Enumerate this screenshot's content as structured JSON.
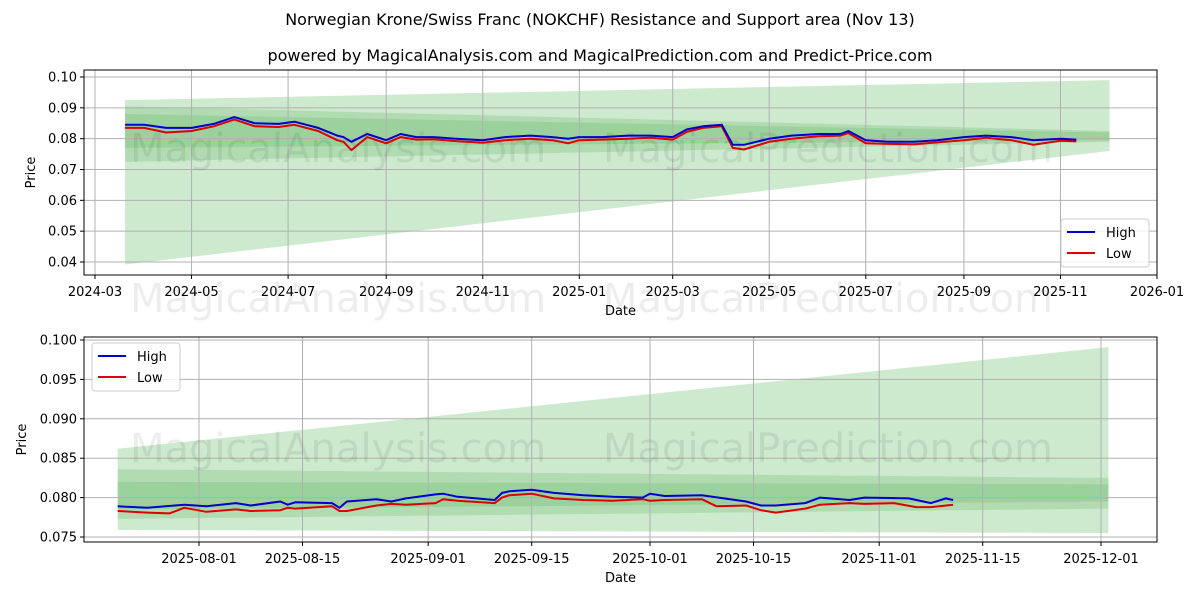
{
  "title": "Norwegian Krone/Swiss Franc (NOKCHF) Resistance and Support area (Nov 13)",
  "subtitle": "powered by MagicalAnalysis.com and MagicalPrediction.com and Predict-Price.com",
  "watermarks": [
    "MagicalAnalysis.com",
    "MagicalPrediction.com"
  ],
  "colors": {
    "high": "#0000cc",
    "low": "#dd0000",
    "band": "#4caf50",
    "grid": "#b0b0b0"
  },
  "chart_data": [
    {
      "type": "line",
      "title": "",
      "xlabel": "Date",
      "ylabel": "Price",
      "ylim": [
        0.036,
        0.102
      ],
      "yticks": [
        "0.04",
        "0.05",
        "0.06",
        "0.07",
        "0.08",
        "0.09",
        "0.10"
      ],
      "xticks": [
        "2024-03",
        "2024-05",
        "2024-07",
        "2024-09",
        "2024-11",
        "2025-01",
        "2025-03",
        "2025-05",
        "2025-07",
        "2025-09",
        "2025-11",
        "2026-01"
      ],
      "grid": true,
      "legend": {
        "position": "lower right",
        "entries": [
          "High",
          "Low"
        ]
      },
      "series": [
        {
          "name": "High",
          "x": [
            "2024-03-20",
            "2024-04-01",
            "2024-04-15",
            "2024-05-01",
            "2024-05-15",
            "2024-05-28",
            "2024-06-10",
            "2024-06-25",
            "2024-07-05",
            "2024-07-20",
            "2024-08-01",
            "2024-08-05",
            "2024-08-10",
            "2024-08-20",
            "2024-09-01",
            "2024-09-10",
            "2024-09-20",
            "2024-10-01",
            "2024-10-15",
            "2024-11-01",
            "2024-11-15",
            "2024-12-01",
            "2024-12-15",
            "2024-12-25",
            "2025-01-01",
            "2025-01-15",
            "2025-02-01",
            "2025-02-15",
            "2025-03-01",
            "2025-03-10",
            "2025-03-20",
            "2025-04-01",
            "2025-04-08",
            "2025-04-15",
            "2025-05-01",
            "2025-05-15",
            "2025-06-01",
            "2025-06-15",
            "2025-06-20",
            "2025-07-01",
            "2025-07-15",
            "2025-08-01",
            "2025-08-15",
            "2025-09-01",
            "2025-09-15",
            "2025-10-01",
            "2025-10-15",
            "2025-11-01",
            "2025-11-11"
          ],
          "values": [
            0.0845,
            0.0845,
            0.0835,
            0.0835,
            0.0848,
            0.087,
            0.085,
            0.0848,
            0.0855,
            0.0835,
            0.081,
            0.0805,
            0.079,
            0.0815,
            0.0795,
            0.0815,
            0.0805,
            0.0805,
            0.08,
            0.0795,
            0.0805,
            0.081,
            0.0805,
            0.08,
            0.0805,
            0.0805,
            0.081,
            0.081,
            0.0805,
            0.083,
            0.084,
            0.0845,
            0.078,
            0.078,
            0.08,
            0.081,
            0.0815,
            0.0815,
            0.0825,
            0.0795,
            0.079,
            0.079,
            0.0795,
            0.0805,
            0.081,
            0.0805,
            0.0795,
            0.08,
            0.0797
          ]
        },
        {
          "name": "Low",
          "x": [
            "2024-03-20",
            "2024-04-01",
            "2024-04-15",
            "2024-05-01",
            "2024-05-15",
            "2024-05-28",
            "2024-06-10",
            "2024-06-25",
            "2024-07-05",
            "2024-07-20",
            "2024-08-01",
            "2024-08-05",
            "2024-08-10",
            "2024-08-20",
            "2024-09-01",
            "2024-09-10",
            "2024-09-20",
            "2024-10-01",
            "2024-10-15",
            "2024-11-01",
            "2024-11-15",
            "2024-12-01",
            "2024-12-15",
            "2024-12-25",
            "2025-01-01",
            "2025-01-15",
            "2025-02-01",
            "2025-02-15",
            "2025-03-01",
            "2025-03-10",
            "2025-03-20",
            "2025-04-01",
            "2025-04-08",
            "2025-04-15",
            "2025-05-01",
            "2025-05-15",
            "2025-06-01",
            "2025-06-15",
            "2025-06-20",
            "2025-07-01",
            "2025-07-15",
            "2025-08-01",
            "2025-08-15",
            "2025-09-01",
            "2025-09-15",
            "2025-10-01",
            "2025-10-15",
            "2025-11-01",
            "2025-11-11"
          ],
          "values": [
            0.0835,
            0.0835,
            0.082,
            0.0825,
            0.084,
            0.0862,
            0.084,
            0.0838,
            0.0845,
            0.0825,
            0.0795,
            0.079,
            0.0763,
            0.0805,
            0.0785,
            0.0805,
            0.0797,
            0.0798,
            0.0792,
            0.0787,
            0.0795,
            0.08,
            0.0795,
            0.0785,
            0.0795,
            0.0797,
            0.08,
            0.0803,
            0.0797,
            0.0822,
            0.0835,
            0.084,
            0.077,
            0.0765,
            0.079,
            0.08,
            0.0808,
            0.081,
            0.0818,
            0.0785,
            0.0783,
            0.0782,
            0.0788,
            0.0795,
            0.0803,
            0.0795,
            0.078,
            0.0793,
            0.0791
          ]
        }
      ],
      "bands": [
        {
          "name": "outer-support-resistance",
          "x0": "2024-03-20",
          "x1": "2025-12-02",
          "top0": 0.0925,
          "top1": 0.099,
          "bottom0": 0.0392,
          "bottom1": 0.076,
          "pivot": "2025-06-20"
        },
        {
          "name": "mid-band",
          "x0": "2024-03-20",
          "x1": "2025-12-02",
          "top0": 0.0905,
          "top1": 0.0825,
          "bottom0": 0.0725,
          "bottom1": 0.079
        },
        {
          "name": "inner-band",
          "x0": "2024-03-20",
          "x1": "2025-12-02",
          "top0": 0.088,
          "top1": 0.082,
          "bottom0": 0.077,
          "bottom1": 0.0795
        }
      ]
    },
    {
      "type": "line",
      "title": "",
      "xlabel": "Date",
      "ylabel": "Price",
      "ylim": [
        0.0745,
        0.1004
      ],
      "yticks": [
        "0.075",
        "0.080",
        "0.085",
        "0.090",
        "0.095",
        "0.100"
      ],
      "xticks": [
        "2025-08-01",
        "2025-08-15",
        "2025-09-01",
        "2025-09-15",
        "2025-10-01",
        "2025-10-15",
        "2025-11-01",
        "2025-11-15",
        "2025-12-01"
      ],
      "grid": true,
      "legend": {
        "position": "upper left",
        "entries": [
          "High",
          "Low"
        ]
      },
      "series": [
        {
          "name": "High",
          "x": [
            "2025-07-21",
            "2025-07-25",
            "2025-07-30",
            "2025-08-02",
            "2025-08-06",
            "2025-08-08",
            "2025-08-12",
            "2025-08-13",
            "2025-08-14",
            "2025-08-19",
            "2025-08-20",
            "2025-08-21",
            "2025-08-25",
            "2025-08-27",
            "2025-08-29",
            "2025-09-02",
            "2025-09-03",
            "2025-09-05",
            "2025-09-10",
            "2025-09-11",
            "2025-09-12",
            "2025-09-15",
            "2025-09-18",
            "2025-09-22",
            "2025-09-26",
            "2025-09-30",
            "2025-10-01",
            "2025-10-03",
            "2025-10-08",
            "2025-10-14",
            "2025-10-16",
            "2025-10-18",
            "2025-10-22",
            "2025-10-24",
            "2025-10-28",
            "2025-10-30",
            "2025-11-05",
            "2025-11-08",
            "2025-11-10",
            "2025-11-11"
          ],
          "values": [
            0.0789,
            0.0787,
            0.0791,
            0.0789,
            0.0793,
            0.079,
            0.0795,
            0.0791,
            0.0794,
            0.0793,
            0.0787,
            0.0795,
            0.0798,
            0.0795,
            0.0799,
            0.0804,
            0.0805,
            0.0801,
            0.0797,
            0.0806,
            0.0808,
            0.081,
            0.0806,
            0.0803,
            0.0801,
            0.08,
            0.0805,
            0.0802,
            0.0803,
            0.0795,
            0.079,
            0.079,
            0.0793,
            0.08,
            0.0797,
            0.08,
            0.0799,
            0.0793,
            0.0799,
            0.0797
          ]
        },
        {
          "name": "Low",
          "x": [
            "2025-07-21",
            "2025-07-25",
            "2025-07-28",
            "2025-07-30",
            "2025-08-02",
            "2025-08-06",
            "2025-08-08",
            "2025-08-12",
            "2025-08-13",
            "2025-08-14",
            "2025-08-19",
            "2025-08-20",
            "2025-08-21",
            "2025-08-25",
            "2025-08-27",
            "2025-08-29",
            "2025-09-02",
            "2025-09-03",
            "2025-09-05",
            "2025-09-10",
            "2025-09-11",
            "2025-09-12",
            "2025-09-15",
            "2025-09-18",
            "2025-09-22",
            "2025-09-26",
            "2025-09-30",
            "2025-10-01",
            "2025-10-03",
            "2025-10-08",
            "2025-10-10",
            "2025-10-14",
            "2025-10-16",
            "2025-10-18",
            "2025-10-22",
            "2025-10-24",
            "2025-10-28",
            "2025-10-30",
            "2025-11-03",
            "2025-11-06",
            "2025-11-08",
            "2025-11-11"
          ],
          "values": [
            0.0783,
            0.0781,
            0.078,
            0.0787,
            0.0782,
            0.0785,
            0.0783,
            0.0784,
            0.0787,
            0.0786,
            0.0789,
            0.0783,
            0.0783,
            0.079,
            0.0792,
            0.0791,
            0.0793,
            0.0798,
            0.0796,
            0.0793,
            0.08,
            0.0803,
            0.0805,
            0.0799,
            0.0797,
            0.0796,
            0.0798,
            0.0796,
            0.0797,
            0.0798,
            0.0789,
            0.079,
            0.0784,
            0.0781,
            0.0786,
            0.0791,
            0.0793,
            0.0792,
            0.0793,
            0.0788,
            0.0788,
            0.0791
          ]
        }
      ],
      "bands": [
        {
          "name": "outer-support-resistance",
          "x0": "2025-07-21",
          "x1": "2025-12-02",
          "top0": 0.0862,
          "top1": 0.0991,
          "bottom0": 0.0759,
          "bottom1": 0.0755
        },
        {
          "name": "mid-band",
          "x0": "2025-07-21",
          "x1": "2025-12-02",
          "top0": 0.0836,
          "top1": 0.0825,
          "bottom0": 0.0773,
          "bottom1": 0.0786
        },
        {
          "name": "inner-band",
          "x0": "2025-07-21",
          "x1": "2025-12-02",
          "top0": 0.082,
          "top1": 0.0817,
          "bottom0": 0.0785,
          "bottom1": 0.0795
        }
      ]
    }
  ]
}
